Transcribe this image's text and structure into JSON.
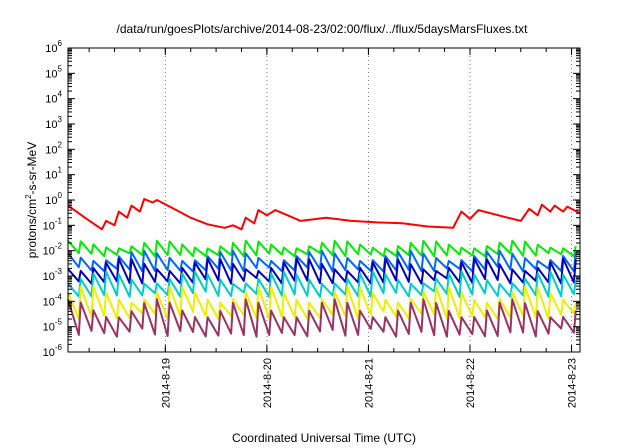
{
  "chart_data": {
    "type": "line",
    "title": "/data/run/goesPlots/archive/2014-08-23/02:00/flux/../flux/5daysMarsFluxes.txt",
    "xlabel": "Coordinated Universal Time (UTC)",
    "ylabel": "protons/cm²-s-sr-MeV",
    "y_scale": "log",
    "ylim": [
      1e-06,
      1000000.0
    ],
    "y_ticks": [
      {
        "value": 1e-06,
        "base": "10",
        "exp": "-6"
      },
      {
        "value": 1e-05,
        "base": "10",
        "exp": "-5"
      },
      {
        "value": 0.0001,
        "base": "10",
        "exp": "-4"
      },
      {
        "value": 0.001,
        "base": "10",
        "exp": "-3"
      },
      {
        "value": 0.01,
        "base": "10",
        "exp": "-2"
      },
      {
        "value": 0.1,
        "base": "10",
        "exp": "-1"
      },
      {
        "value": 1.0,
        "base": "10",
        "exp": "0"
      },
      {
        "value": 10.0,
        "base": "10",
        "exp": "1"
      },
      {
        "value": 100.0,
        "base": "10",
        "exp": "2"
      },
      {
        "value": 1000.0,
        "base": "10",
        "exp": "3"
      },
      {
        "value": 10000.0,
        "base": "10",
        "exp": "4"
      },
      {
        "value": 100000.0,
        "base": "10",
        "exp": "5"
      },
      {
        "value": 1000000.0,
        "base": "10",
        "exp": "6"
      }
    ],
    "xlim": [
      "2014-08-18T01:00",
      "2014-08-23T02:00"
    ],
    "x_ticks": [
      {
        "value": "2014-08-19T00:00",
        "label": "2014-8-19"
      },
      {
        "value": "2014-08-20T00:00",
        "label": "2014-8-20"
      },
      {
        "value": "2014-08-21T00:00",
        "label": "2014-8-21"
      },
      {
        "value": "2014-08-22T00:00",
        "label": "2014-8-22"
      },
      {
        "value": "2014-08-23T00:00",
        "label": "2014-8-23"
      }
    ],
    "grid": "vertical dotted at x ticks",
    "series": [
      {
        "color": "#ff0000",
        "points": [
          [
            "2014-08-18T01:00",
            0.6
          ],
          [
            "2014-08-18T05:00",
            0.2
          ],
          [
            "2014-08-18T09:00",
            0.07
          ],
          [
            "2014-08-18T10:00",
            0.15
          ],
          [
            "2014-08-18T12:00",
            0.1
          ],
          [
            "2014-08-18T13:00",
            0.35
          ],
          [
            "2014-08-18T15:00",
            0.2
          ],
          [
            "2014-08-18T16:00",
            0.6
          ],
          [
            "2014-08-18T18:00",
            0.35
          ],
          [
            "2014-08-18T19:00",
            1.1
          ],
          [
            "2014-08-18T21:00",
            0.8
          ],
          [
            "2014-08-18T22:00",
            1.0
          ],
          [
            "2014-08-19T02:00",
            0.45
          ],
          [
            "2014-08-19T06:00",
            0.2
          ],
          [
            "2014-08-19T10:00",
            0.11
          ],
          [
            "2014-08-19T14:00",
            0.08
          ],
          [
            "2014-08-19T16:00",
            0.1
          ],
          [
            "2014-08-19T18:00",
            0.07
          ],
          [
            "2014-08-19T19:00",
            0.2
          ],
          [
            "2014-08-19T21:00",
            0.12
          ],
          [
            "2014-08-19T22:00",
            0.4
          ],
          [
            "2014-08-20T00:00",
            0.25
          ],
          [
            "2014-08-20T02:00",
            0.4
          ],
          [
            "2014-08-20T08:00",
            0.15
          ],
          [
            "2014-08-20T14:00",
            0.2
          ],
          [
            "2014-08-20T20:00",
            0.15
          ],
          [
            "2014-08-21T02:00",
            0.13
          ],
          [
            "2014-08-21T08:00",
            0.12
          ],
          [
            "2014-08-21T14:00",
            0.09
          ],
          [
            "2014-08-21T20:00",
            0.08
          ],
          [
            "2014-08-21T22:00",
            0.35
          ],
          [
            "2014-08-22T00:00",
            0.18
          ],
          [
            "2014-08-22T02:00",
            0.4
          ],
          [
            "2014-08-22T08:00",
            0.22
          ],
          [
            "2014-08-22T12:00",
            0.15
          ],
          [
            "2014-08-22T14:00",
            0.45
          ],
          [
            "2014-08-22T16:00",
            0.25
          ],
          [
            "2014-08-22T17:00",
            0.65
          ],
          [
            "2014-08-22T19:00",
            0.35
          ],
          [
            "2014-08-22T20:00",
            0.6
          ],
          [
            "2014-08-22T22:00",
            0.35
          ],
          [
            "2014-08-22T23:00",
            0.55
          ],
          [
            "2014-08-23T02:00",
            0.3
          ]
        ]
      },
      {
        "color": "#00ee00",
        "low": 0.006,
        "high": 0.025
      },
      {
        "color": "#0066ff",
        "low": 0.0015,
        "high": 0.01
      },
      {
        "color": "#0000bb",
        "low": 0.0005,
        "high": 0.005
      },
      {
        "color": "#00cccc",
        "low": 0.00015,
        "high": 0.0015
      },
      {
        "color": "#eeee00",
        "low": 2e-05,
        "high": 0.0004
      },
      {
        "color": "#993366",
        "low": 4e-06,
        "high": 0.00012
      }
    ]
  }
}
